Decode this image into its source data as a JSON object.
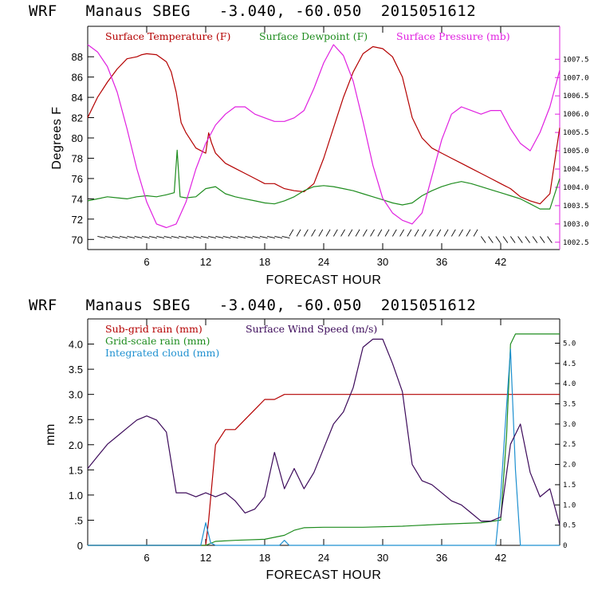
{
  "header": {
    "top": "WRF   Manaus SBEG   -3.040, -60.050  2015051612",
    "bottom": "WRF   Manaus SBEG   -3.040, -60.050  2015051612"
  },
  "colors": {
    "temperature": "#b40000",
    "dewpoint": "#1e8c1e",
    "pressure": "#e020e0",
    "subgrid_rain": "#b40000",
    "grid_rain": "#1e8c1e",
    "cloud": "#1e90d0",
    "wind": "#3c0a5a",
    "wind_barb": "#000000"
  },
  "chart_data": [
    {
      "type": "line",
      "xlabel": "FORECAST HOUR",
      "ylabel": "Degrees F",
      "xlim": [
        0,
        48
      ],
      "ylim": [
        69,
        91
      ],
      "y2lim": [
        1002.3,
        1008.4
      ],
      "x_ticks": [
        "6",
        "12",
        "18",
        "24",
        "30",
        "36",
        "42"
      ],
      "y_ticks": [
        "70",
        "72",
        "74",
        "76",
        "78",
        "80",
        "82",
        "84",
        "86",
        "88"
      ],
      "y2_ticks": [
        "1002.5",
        "1003.0",
        "1003.5",
        "1004.0",
        "1004.5",
        "1005.0",
        "1005.5",
        "1006.0",
        "1006.5",
        "1007.0",
        "1007.5"
      ],
      "legend": [
        "Surface Temperature (F)",
        "Surface Dewpoint (F)",
        "Surface Pressure (mb)"
      ],
      "series": [
        {
          "name": "Surface Temperature (F)",
          "axis": "left",
          "x": [
            0,
            1,
            2,
            3,
            4,
            5,
            5.5,
            6,
            7,
            8,
            8.5,
            9,
            9.5,
            10,
            11,
            12,
            12.3,
            12.6,
            13,
            14,
            15,
            16,
            17,
            18,
            19,
            20,
            21,
            22,
            23,
            24,
            25,
            26,
            27,
            28,
            29,
            30,
            31,
            32,
            33,
            34,
            35,
            36,
            37,
            38,
            39,
            40,
            41,
            42,
            43,
            44,
            45,
            46,
            47,
            48
          ],
          "values": [
            82,
            84,
            85.5,
            86.8,
            87.8,
            88.0,
            88.2,
            88.3,
            88.2,
            87.5,
            86.5,
            84.5,
            81.5,
            80.5,
            79,
            78.5,
            80.5,
            79.5,
            78.5,
            77.5,
            77,
            76.5,
            76,
            75.5,
            75.5,
            75,
            74.8,
            74.7,
            75.5,
            78,
            81,
            84,
            86.5,
            88.3,
            89,
            88.8,
            88,
            86,
            82,
            80,
            79,
            78.5,
            78,
            77.5,
            77,
            76.5,
            76,
            75.5,
            75,
            74.2,
            73.8,
            73.5,
            74.5,
            81
          ]
        },
        {
          "name": "Surface Dewpoint (F)",
          "axis": "left",
          "x": [
            0,
            1,
            2,
            3,
            4,
            5,
            6,
            7,
            8,
            8.8,
            9.1,
            9.4,
            10,
            11,
            12,
            13,
            14,
            15,
            16,
            17,
            18,
            19,
            20,
            21,
            22,
            23,
            24,
            25,
            26,
            27,
            28,
            29,
            30,
            31,
            32,
            33,
            34,
            35,
            36,
            37,
            38,
            39,
            40,
            41,
            42,
            43,
            44,
            45,
            46,
            47,
            48
          ],
          "values": [
            73.8,
            74,
            74.2,
            74.1,
            74,
            74.2,
            74.3,
            74.2,
            74.4,
            74.6,
            78.8,
            74.2,
            74.1,
            74.2,
            75,
            75.2,
            74.5,
            74.2,
            74,
            73.8,
            73.6,
            73.5,
            73.8,
            74.2,
            74.8,
            75.2,
            75.3,
            75.2,
            75,
            74.8,
            74.5,
            74.2,
            73.9,
            73.6,
            73.4,
            73.6,
            74.3,
            74.8,
            75.2,
            75.5,
            75.7,
            75.5,
            75.2,
            74.9,
            74.6,
            74.3,
            74.0,
            73.5,
            73.0,
            73.0,
            76
          ]
        },
        {
          "name": "Surface Pressure (mb)",
          "axis": "right",
          "x": [
            0,
            1,
            2,
            3,
            4,
            5,
            6,
            7,
            8,
            9,
            10,
            11,
            12,
            13,
            14,
            15,
            16,
            17,
            18,
            19,
            20,
            21,
            22,
            23,
            24,
            25,
            26,
            27,
            28,
            29,
            30,
            31,
            32,
            33,
            34,
            35,
            36,
            37,
            38,
            39,
            40,
            41,
            42,
            43,
            44,
            45,
            46,
            47,
            48
          ],
          "values": [
            1007.9,
            1007.7,
            1007.3,
            1006.6,
            1005.6,
            1004.5,
            1003.6,
            1003.0,
            1002.9,
            1003.0,
            1003.6,
            1004.5,
            1005.2,
            1005.7,
            1006.0,
            1006.2,
            1006.2,
            1006.0,
            1005.9,
            1005.8,
            1005.8,
            1005.9,
            1006.1,
            1006.7,
            1007.4,
            1007.9,
            1007.6,
            1006.9,
            1005.8,
            1004.6,
            1003.7,
            1003.3,
            1003.1,
            1003.0,
            1003.3,
            1004.3,
            1005.3,
            1006.0,
            1006.2,
            1006.1,
            1006.0,
            1006.1,
            1006.1,
            1005.6,
            1005.2,
            1005.0,
            1005.5,
            1006.2,
            1007.2
          ]
        }
      ],
      "wind_barbs": "row of wind barbs along bottom of panel"
    },
    {
      "type": "line",
      "xlabel": "FORECAST HOUR",
      "ylabel": "mm",
      "xlim": [
        0,
        48
      ],
      "ylim": [
        0,
        4.5
      ],
      "y2lim": [
        0,
        5.6
      ],
      "x_ticks": [
        "6",
        "12",
        "18",
        "24",
        "30",
        "36",
        "42"
      ],
      "y_ticks": [
        "0",
        ".5",
        "1.0",
        "1.5",
        "2.0",
        "2.5",
        "3.0",
        "3.5",
        "4.0"
      ],
      "y2_ticks": [
        "0",
        "0.5",
        "1.0",
        "1.5",
        "2.0",
        "2.5",
        "3.0",
        "3.5",
        "4.0",
        "4.5",
        "5.0"
      ],
      "legend": [
        "Sub-grid rain (mm)",
        "Surface Wind Speed (m/s)",
        "Grid-scale rain (mm)",
        "Integrated cloud (mm)"
      ],
      "series": [
        {
          "name": "Sub-grid rain (mm)",
          "axis": "left",
          "x": [
            0,
            12.0,
            12.3,
            13,
            14,
            15,
            16,
            17,
            18,
            19,
            20,
            21,
            48
          ],
          "values": [
            0,
            0,
            0.5,
            2.0,
            2.3,
            2.3,
            2.5,
            2.7,
            2.9,
            2.9,
            3.0,
            3.0,
            3.0
          ]
        },
        {
          "name": "Grid-scale rain (mm)",
          "axis": "left",
          "x": [
            0,
            12,
            13,
            15,
            18,
            20,
            21,
            22,
            24,
            28,
            32,
            36,
            40,
            42,
            42.6,
            43,
            43.5,
            48
          ],
          "values": [
            0,
            0,
            0.08,
            0.1,
            0.12,
            0.2,
            0.3,
            0.35,
            0.36,
            0.36,
            0.38,
            0.42,
            0.45,
            0.5,
            2.2,
            4.0,
            4.2,
            4.2
          ]
        },
        {
          "name": "Integrated cloud (mm)",
          "axis": "left",
          "x": [
            0,
            11.5,
            12,
            12.5,
            13,
            19.5,
            20,
            20.5,
            21,
            41.5,
            42,
            42.5,
            43,
            43.5,
            44,
            48
          ],
          "values": [
            0,
            0,
            0.45,
            0.05,
            0,
            0,
            0.1,
            0,
            0,
            0,
            1.0,
            2.5,
            3.9,
            1.5,
            0,
            0
          ]
        },
        {
          "name": "Surface Wind Speed (m/s)",
          "axis": "right",
          "x": [
            0,
            1,
            2,
            3,
            4,
            5,
            6,
            7,
            8,
            9,
            10,
            11,
            12,
            13,
            14,
            15,
            16,
            17,
            18,
            19,
            20,
            21,
            22,
            23,
            24,
            25,
            26,
            27,
            28,
            29,
            30,
            31,
            32,
            33,
            34,
            35,
            36,
            37,
            38,
            39,
            40,
            41,
            42,
            43,
            44,
            45,
            46,
            47,
            48
          ],
          "values": [
            1.9,
            2.2,
            2.5,
            2.7,
            2.9,
            3.1,
            3.2,
            3.1,
            2.8,
            1.3,
            1.3,
            1.2,
            1.3,
            1.2,
            1.3,
            1.1,
            0.8,
            0.9,
            1.2,
            2.3,
            1.4,
            1.9,
            1.4,
            1.8,
            2.4,
            3.0,
            3.3,
            3.9,
            4.9,
            5.1,
            5.1,
            4.5,
            3.8,
            2.0,
            1.6,
            1.5,
            1.3,
            1.1,
            1.0,
            0.8,
            0.6,
            0.6,
            0.7,
            2.5,
            3.0,
            1.8,
            1.2,
            1.4,
            0.5
          ]
        }
      ]
    }
  ]
}
